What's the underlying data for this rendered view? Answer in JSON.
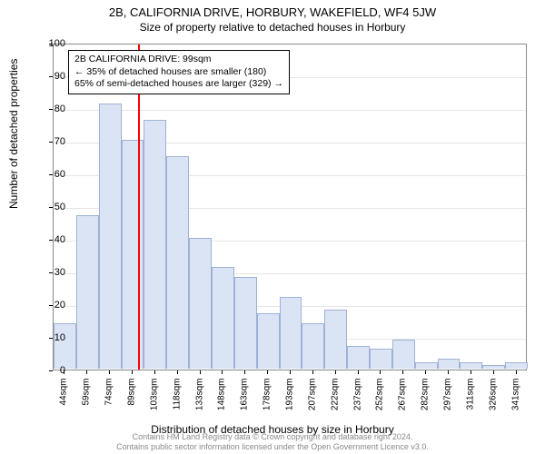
{
  "title": "2B, CALIFORNIA DRIVE, HORBURY, WAKEFIELD, WF4 5JW",
  "subtitle": "Size of property relative to detached houses in Horbury",
  "ylabel": "Number of detached properties",
  "xlabel": "Distribution of detached houses by size in Horbury",
  "footer_line1": "Contains HM Land Registry data © Crown copyright and database right 2024.",
  "footer_line2": "Contains public sector information licensed under the Open Government Licence v3.0.",
  "chart": {
    "type": "histogram",
    "ylim": [
      0,
      100
    ],
    "ytick_step": 10,
    "yticks": [
      0,
      10,
      20,
      30,
      40,
      50,
      60,
      70,
      80,
      90,
      100
    ],
    "xticks": [
      "44sqm",
      "59sqm",
      "74sqm",
      "89sqm",
      "103sqm",
      "118sqm",
      "133sqm",
      "148sqm",
      "163sqm",
      "178sqm",
      "193sqm",
      "207sqm",
      "222sqm",
      "237sqm",
      "252sqm",
      "267sqm",
      "282sqm",
      "297sqm",
      "311sqm",
      "326sqm",
      "341sqm"
    ],
    "values": [
      14,
      47,
      81,
      70,
      76,
      65,
      40,
      31,
      28,
      17,
      22,
      14,
      18,
      7,
      6,
      9,
      2,
      3,
      2,
      1,
      2
    ],
    "bar_color": "#dbe4f5",
    "bar_border": "#9fb2d6",
    "grid_color": "#e6e6e6",
    "axis_color": "#888888",
    "refline_color": "#ff0000",
    "refline_index": 3.75,
    "background": "#ffffff"
  },
  "annotation": {
    "line1": "2B CALIFORNIA DRIVE: 99sqm",
    "line2": "← 35% of detached houses are smaller (180)",
    "line3": "65% of semi-detached houses are larger (329) →"
  }
}
